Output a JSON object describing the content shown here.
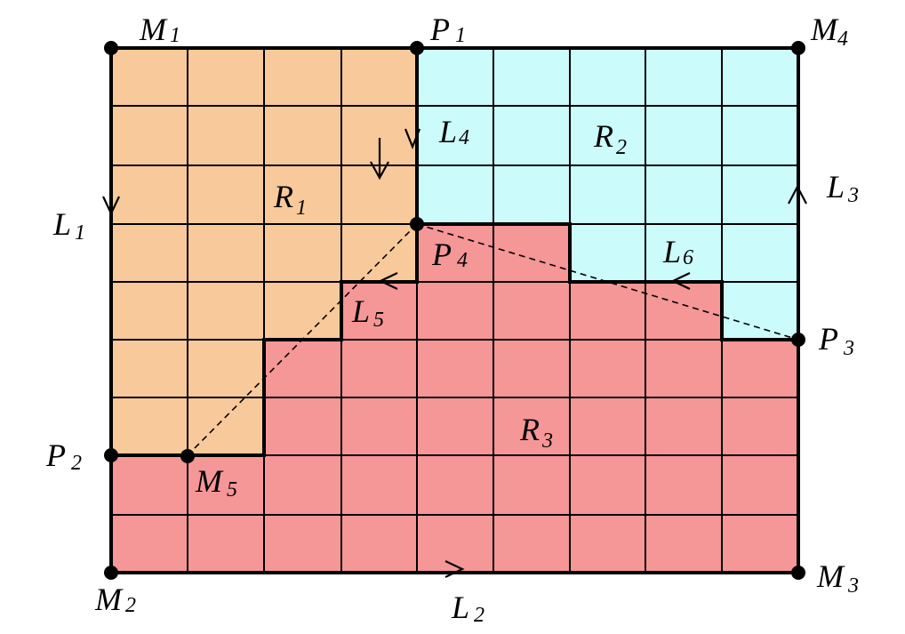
{
  "colors": {
    "region_r1": "#f8c99a",
    "region_r2": "#ccfbfb",
    "region_r3": "#f59697",
    "grid": "#000000",
    "background": "#ffffff"
  },
  "regions": [
    {
      "id": "R1",
      "base": "R",
      "sub": "1"
    },
    {
      "id": "R2",
      "base": "R",
      "sub": "2"
    },
    {
      "id": "R3",
      "base": "R",
      "sub": "3"
    }
  ],
  "points": [
    {
      "id": "M1",
      "base": "M",
      "sub": "1"
    },
    {
      "id": "P1",
      "base": "P",
      "sub": "1"
    },
    {
      "id": "M4",
      "base": "M",
      "sub": "4"
    },
    {
      "id": "P2",
      "base": "P",
      "sub": "2"
    },
    {
      "id": "M5",
      "base": "M",
      "sub": "5"
    },
    {
      "id": "P4",
      "base": "P",
      "sub": "4"
    },
    {
      "id": "P3",
      "base": "P",
      "sub": "3"
    },
    {
      "id": "M2",
      "base": "M",
      "sub": "2"
    },
    {
      "id": "M3",
      "base": "M",
      "sub": "3"
    }
  ],
  "boundaries": [
    {
      "id": "L1",
      "base": "L",
      "sub": "1"
    },
    {
      "id": "L2",
      "base": "L",
      "sub": "2"
    },
    {
      "id": "L3",
      "base": "L",
      "sub": "3"
    },
    {
      "id": "L4",
      "base": "L",
      "sub": "4"
    },
    {
      "id": "L5",
      "base": "L",
      "sub": "5"
    },
    {
      "id": "L6",
      "base": "L",
      "sub": "6"
    }
  ]
}
